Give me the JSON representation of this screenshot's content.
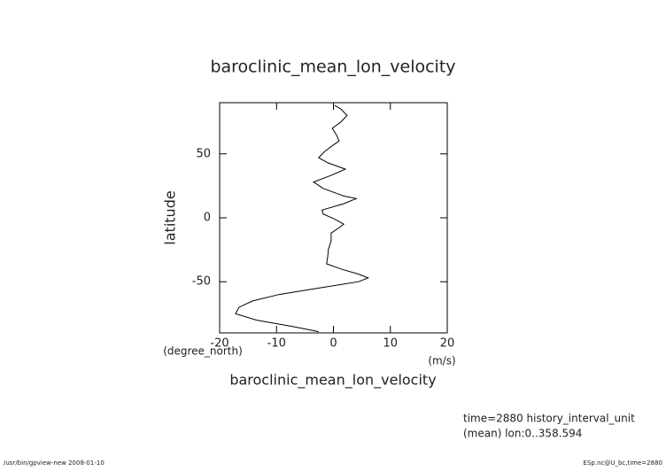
{
  "chart_data": {
    "type": "line",
    "title": "baroclinic_mean_lon_velocity",
    "x_label": "baroclinic_mean_lon_velocity",
    "x_units": "(m/s)",
    "y_label": "latitude",
    "y_units": "(degree_north)",
    "annotations": [
      "time=2880 history_interval_unit",
      "(mean) lon:0..358.594"
    ],
    "footer_left": "/usr/bin/gpview-new  2008-01-10",
    "footer_right": "ESp.nc@U_bc,time=2880",
    "xlim": [
      -20,
      20
    ],
    "xticks": [
      -20,
      -10,
      0,
      10,
      20
    ],
    "ylim": [
      -90,
      90
    ],
    "yticks": [
      -50,
      0,
      50
    ],
    "color": "#000000",
    "latitude": [
      88,
      85,
      80,
      75,
      70,
      65,
      60,
      57,
      52,
      47,
      43,
      38,
      33,
      28,
      23,
      17,
      15,
      11,
      6,
      3,
      -1,
      -5,
      -8,
      -12,
      -18,
      -25,
      -30,
      -36,
      -40,
      -44,
      -47,
      -50,
      -55,
      -60,
      -65,
      -70,
      -75,
      -80,
      -85,
      -89
    ],
    "values": [
      0.2,
      1.3,
      2.4,
      1.3,
      -0.2,
      0.5,
      1,
      0,
      -1.5,
      -2.6,
      -1,
      2.1,
      -0.5,
      -3.5,
      -1.8,
      1.8,
      4,
      1.8,
      -2,
      -1.8,
      0.2,
      1.8,
      0.9,
      -0.4,
      -0.4,
      -0.9,
      -1,
      -1.2,
      1.3,
      4.4,
      6.1,
      4.4,
      -2.6,
      -9.6,
      -14.2,
      -16.6,
      -17.2,
      -13.5,
      -7.2,
      -2.6
    ]
  }
}
